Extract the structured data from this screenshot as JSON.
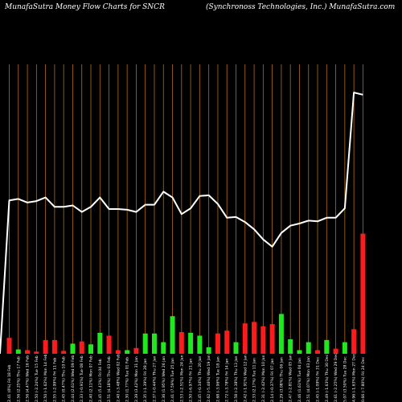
{
  "chart_data": {
    "type": "bar",
    "title_left": "MunafaSutra  Money Flow  Charts for SNCR",
    "title_right": "(Synchronoss Technologies, Inc.) MunafaSutra.com",
    "categories": [
      "2.41 (0%) Fri 18 Feb",
      "2.56 (2.25%) Thu 17 Feb",
      "2.56 (4.47%) Wed 16 Feb",
      "2.50 (-2.24%) Tue 15 Feb",
      "2.50 (-1.62%) Mon 14 Feb",
      "2.55 (-2.99%) Fri 11 Feb",
      "2.45 (0.47%) Thu 10 Feb",
      "2.44 (2.61%) Wed 09 Feb",
      "2.33 (-0.91%) Tue 08 Feb",
      "2.40 (2.11%) Mon 07 Feb",
      "2.45 (5.43%) Fri 04 Feb",
      "2.51 (4.18%) Thu 03 Feb",
      "2.40 (-3.48%) Wed 02 Feb",
      "2.30 (1.77%) Tue 01 Feb",
      "2.39 (3.42%) Mon 31 Jan",
      "2.35 (-1.39%) Fri 28 Jan",
      "2.37 (-0.44%) Thu 27 Jan",
      "2.36 (1.95%) Wed 26 Jan",
      "2.41 (7.59%) Tue 25 Jan",
      "2.53 (-2.51%) Mon 24 Jan",
      "2.50 (-6.97%) Fri 21 Jan",
      "2.45 (-0.34%) Thu 20 Jan",
      "2.62 (-5.46%) Wed 19 Jan",
      "2.68 (-3.96%) Tue 18 Jan",
      "2.72 (-3.78%) Fri 14 Jan",
      "2.58 (-2.38%) Thu 13 Jan",
      "2.42 (-1.91%) Wed 12 Jan",
      "2.33 (2.17%) Tue 11 Jan",
      "2.31 (-2.42%) Mon 10 Jan",
      "2.14 (-0.37%) Fri 07 Jan",
      "2.29 (3.08%) Thu 06 Jan",
      "2.47 (-2.81%) Wed 05 Jan",
      "2.46 (1.61%) Tue 04 Jan",
      "2.51 (4.07%) Mon 03 Jan",
      "2.45 (-1.09%) Fri 31 Dec",
      "2.49 (-1.63%) Thu 30 Dec",
      "2.61 (-2.25%) Wed 29 Dec",
      "5.07 (3.50%) Tue 28 Dec",
      "4.96 (-1.63%) Mon 27 Dec",
      "0.66 (-7.80%) Fri 24 Dec"
    ],
    "series": [
      {
        "kind": "bar",
        "values": [
          22,
          6,
          5,
          3,
          19,
          19,
          4,
          14,
          17,
          13,
          29,
          25,
          5,
          5,
          8,
          28,
          28,
          16,
          52,
          30,
          29,
          25,
          9,
          28,
          32,
          16,
          42,
          44,
          38,
          41,
          55,
          20,
          5,
          16,
          5,
          19,
          7,
          16,
          34,
          166
        ],
        "directions": [
          "down",
          "up",
          "down",
          "down",
          "down",
          "down",
          "down",
          "up",
          "down",
          "up",
          "up",
          "down",
          "down",
          "up",
          "down",
          "up",
          "up",
          "up",
          "up",
          "down",
          "up",
          "up",
          "up",
          "down",
          "down",
          "up",
          "down",
          "down",
          "down",
          "down",
          "up",
          "up",
          "up",
          "up",
          "down",
          "up",
          "down",
          "up",
          "down",
          "down"
        ]
      },
      {
        "kind": "line",
        "values": [
          212,
          214,
          209,
          211,
          216,
          203,
          203,
          205,
          196,
          203,
          216,
          200,
          200,
          199,
          196,
          206,
          206,
          224,
          216,
          193,
          201,
          218,
          219,
          207,
          188,
          189,
          182,
          172,
          158,
          148,
          167,
          177,
          180,
          184,
          183,
          188,
          188,
          201,
          361,
          358
        ]
      }
    ],
    "ylim": [
      0,
      400
    ],
    "colors": {
      "background": "#000000",
      "grid": "#b56d13",
      "up": "#1fe81f",
      "down": "#ff1b1b",
      "line": "#ffffff",
      "text": "#ffffff"
    },
    "grid": true
  }
}
